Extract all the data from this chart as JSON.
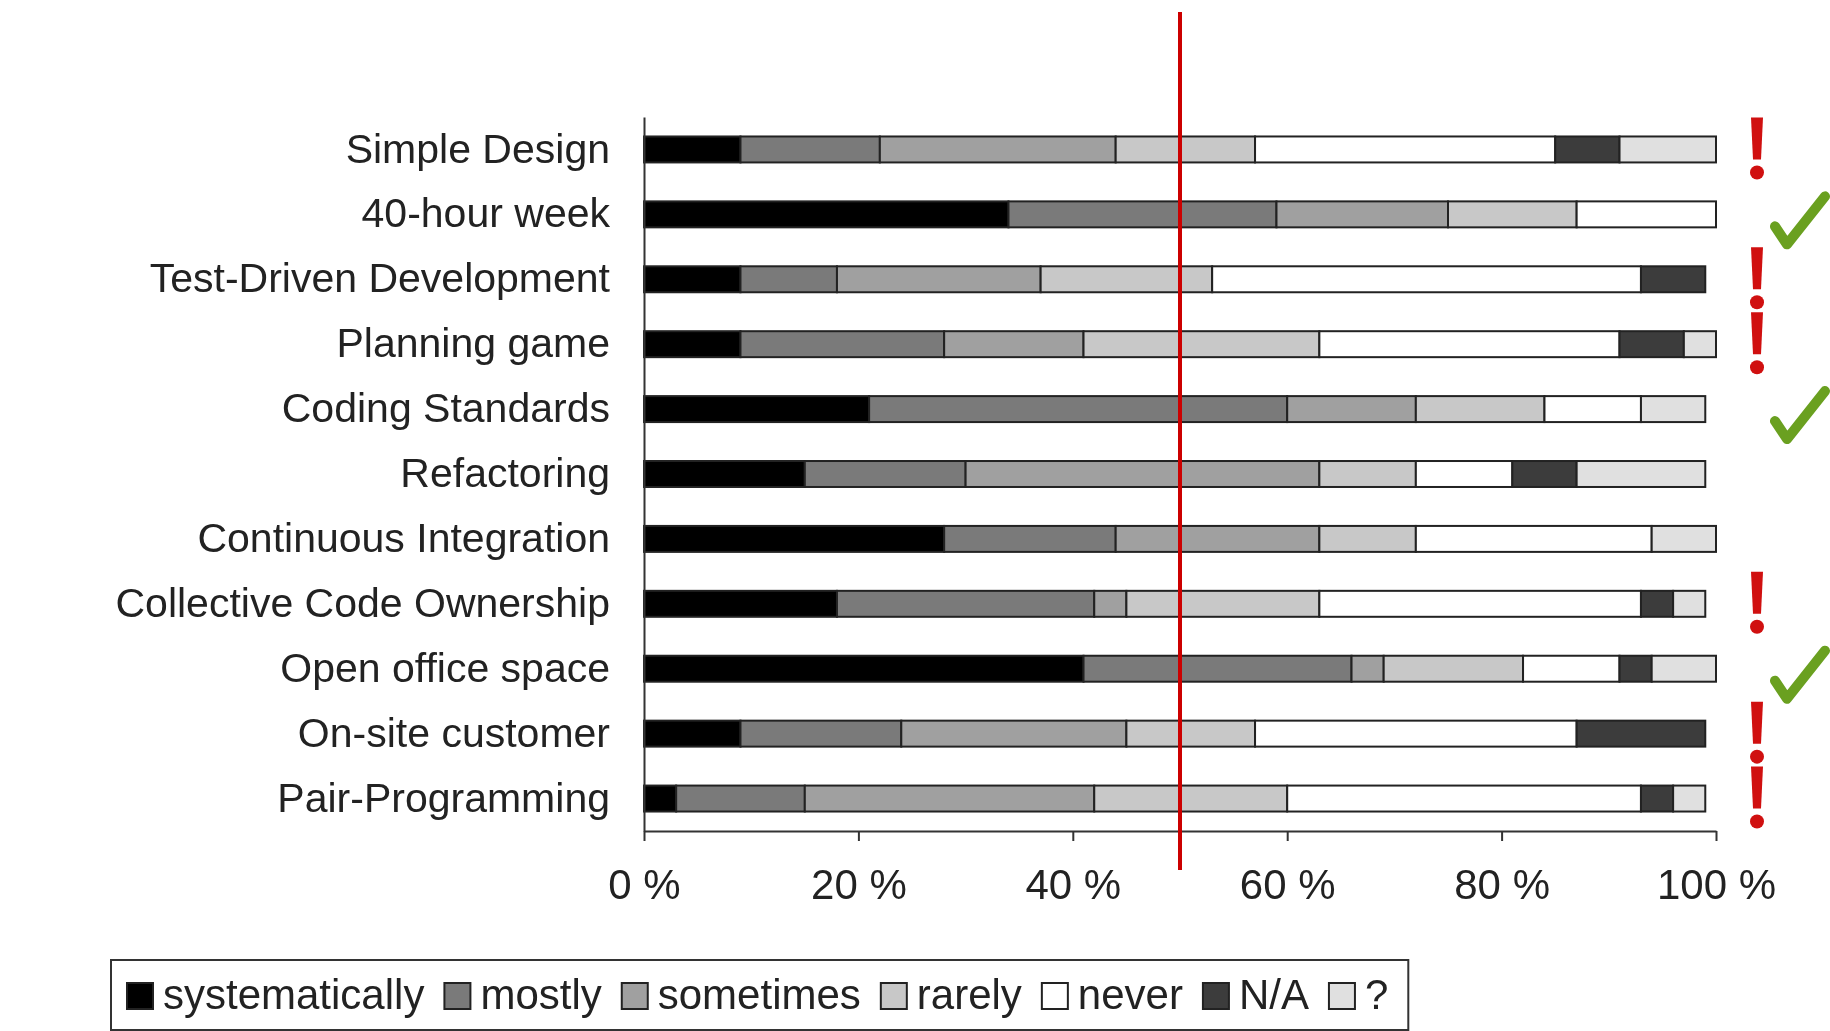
{
  "chart_data": {
    "type": "bar",
    "orientation": "horizontal",
    "stacked": true,
    "categories": [
      "Simple Design",
      "40-hour week",
      "Test-Driven Development",
      "Planning game",
      "Coding Standards",
      "Refactoring",
      "Continuous Integration",
      "Collective Code Ownership",
      "Open office space",
      "On-site customer",
      "Pair-Programming"
    ],
    "series": [
      {
        "name": "systematically",
        "color": "#000000",
        "values": [
          9,
          34,
          9,
          9,
          21,
          15,
          28,
          18,
          41,
          9,
          3
        ]
      },
      {
        "name": "mostly",
        "color": "#7a7a7a",
        "values": [
          13,
          25,
          9,
          19,
          39,
          15,
          16,
          24,
          25,
          15,
          12
        ]
      },
      {
        "name": "sometimes",
        "color": "#a0a0a0",
        "values": [
          22,
          16,
          19,
          13,
          12,
          33,
          19,
          3,
          3,
          21,
          27
        ]
      },
      {
        "name": "rarely",
        "color": "#c8c8c8",
        "values": [
          13,
          12,
          16,
          22,
          12,
          9,
          9,
          18,
          13,
          12,
          18
        ]
      },
      {
        "name": "never",
        "color": "#ffffff",
        "values": [
          28,
          13,
          40,
          28,
          9,
          9,
          22,
          30,
          9,
          30,
          33
        ]
      },
      {
        "name": "N/A",
        "color": "#3c3c3c",
        "values": [
          6,
          0,
          6,
          6,
          0,
          6,
          0,
          3,
          3,
          12,
          3
        ]
      },
      {
        "name": "?",
        "color": "#e0e0e0",
        "values": [
          9,
          0,
          0,
          3,
          6,
          12,
          6,
          3,
          6,
          0,
          3
        ]
      }
    ],
    "xlim": [
      0,
      100
    ],
    "xticks": [
      {
        "value": 0,
        "label": "0 %"
      },
      {
        "value": 20,
        "label": "20 %"
      },
      {
        "value": 40,
        "label": "40 %"
      },
      {
        "value": 60,
        "label": "60 %"
      },
      {
        "value": 80,
        "label": "80 %"
      },
      {
        "value": 100,
        "label": "100 %"
      }
    ],
    "ref_lines": [
      {
        "axis": "x",
        "value": 50,
        "color": "#cc0000"
      }
    ],
    "legend": "bottom",
    "grid": false
  }
}
